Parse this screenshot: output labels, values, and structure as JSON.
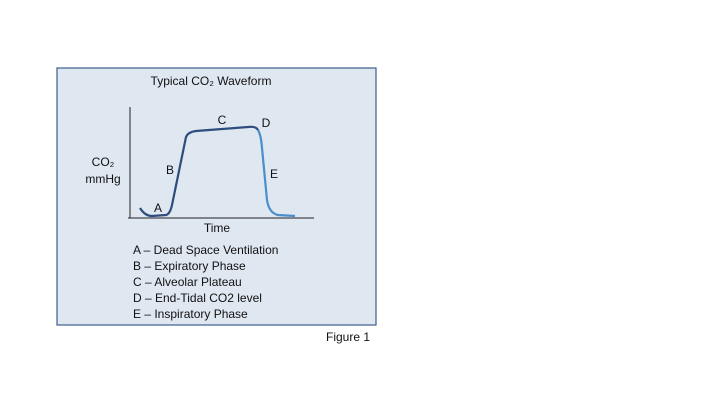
{
  "figure": {
    "title": "Typical CO₂ Waveform",
    "y_axis_label": [
      "CO₂",
      "mmHg"
    ],
    "x_axis_label": "Time",
    "curve_labels": [
      "A",
      "B",
      "C",
      "D",
      "E"
    ],
    "legend": [
      "A – Dead Space Ventilation",
      "B – Expiratory Phase",
      "C – Alveolar Plateau",
      "D – End-Tidal CO2 level",
      "E – Inspiratory Phase"
    ],
    "caption": "Figure 1"
  }
}
